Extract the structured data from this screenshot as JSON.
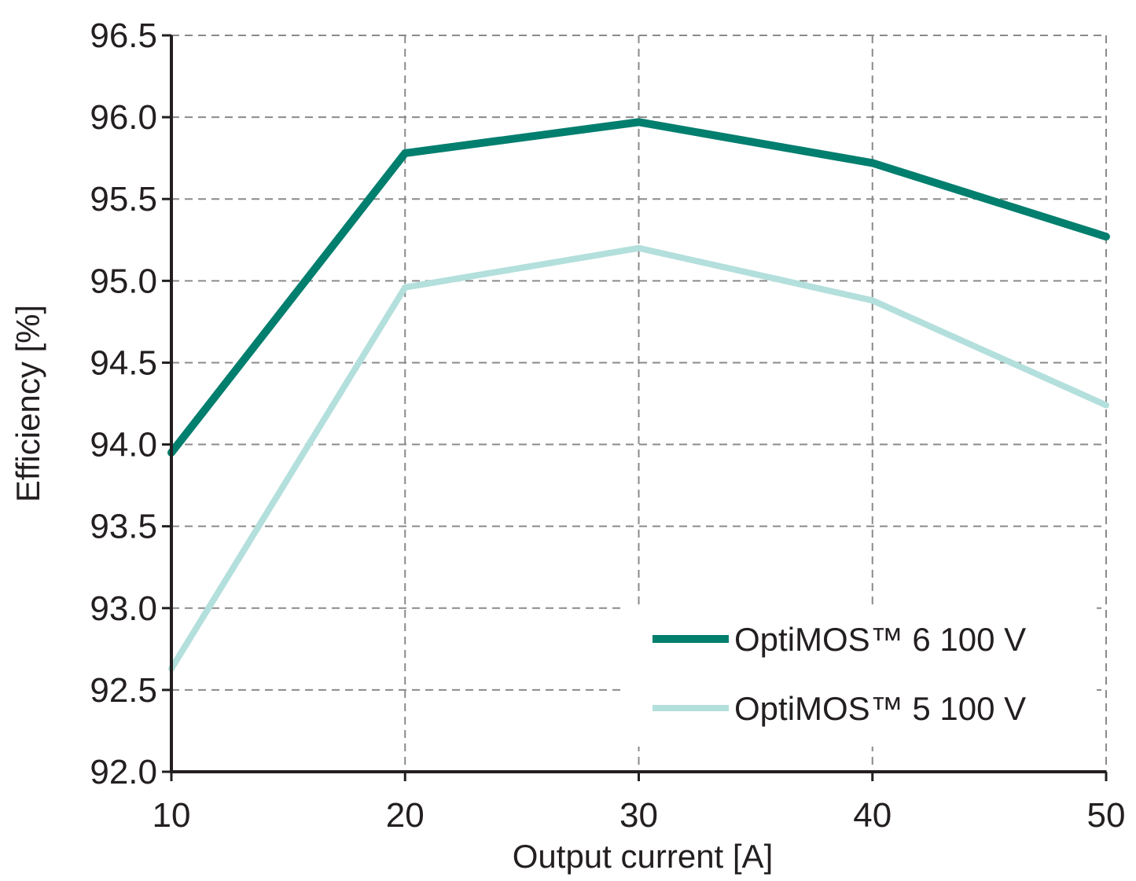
{
  "chart_data": {
    "type": "line",
    "title": "",
    "xlabel": "Output current [A]",
    "ylabel": "Efficiency [%]",
    "x": [
      10,
      20,
      30,
      40,
      50
    ],
    "xticks": [
      "10",
      "20",
      "30",
      "40",
      "50"
    ],
    "yticks": [
      "92.0",
      "92.5",
      "93.0",
      "93.5",
      "94.0",
      "94.5",
      "95.0",
      "95.5",
      "96.0",
      "96.5"
    ],
    "xlim": [
      10,
      50
    ],
    "ylim": [
      92.0,
      96.5
    ],
    "grid": true,
    "legend_position": "bottom-right",
    "series": [
      {
        "name": "OptiMOS™ 6 100 V",
        "values": [
          93.95,
          95.78,
          95.97,
          95.72,
          95.27
        ],
        "color": "#007e6e"
      },
      {
        "name": "OptiMOS™ 5 100 V",
        "values": [
          92.63,
          94.96,
          95.2,
          94.88,
          94.24
        ],
        "color": "#b3dfdc"
      }
    ]
  }
}
